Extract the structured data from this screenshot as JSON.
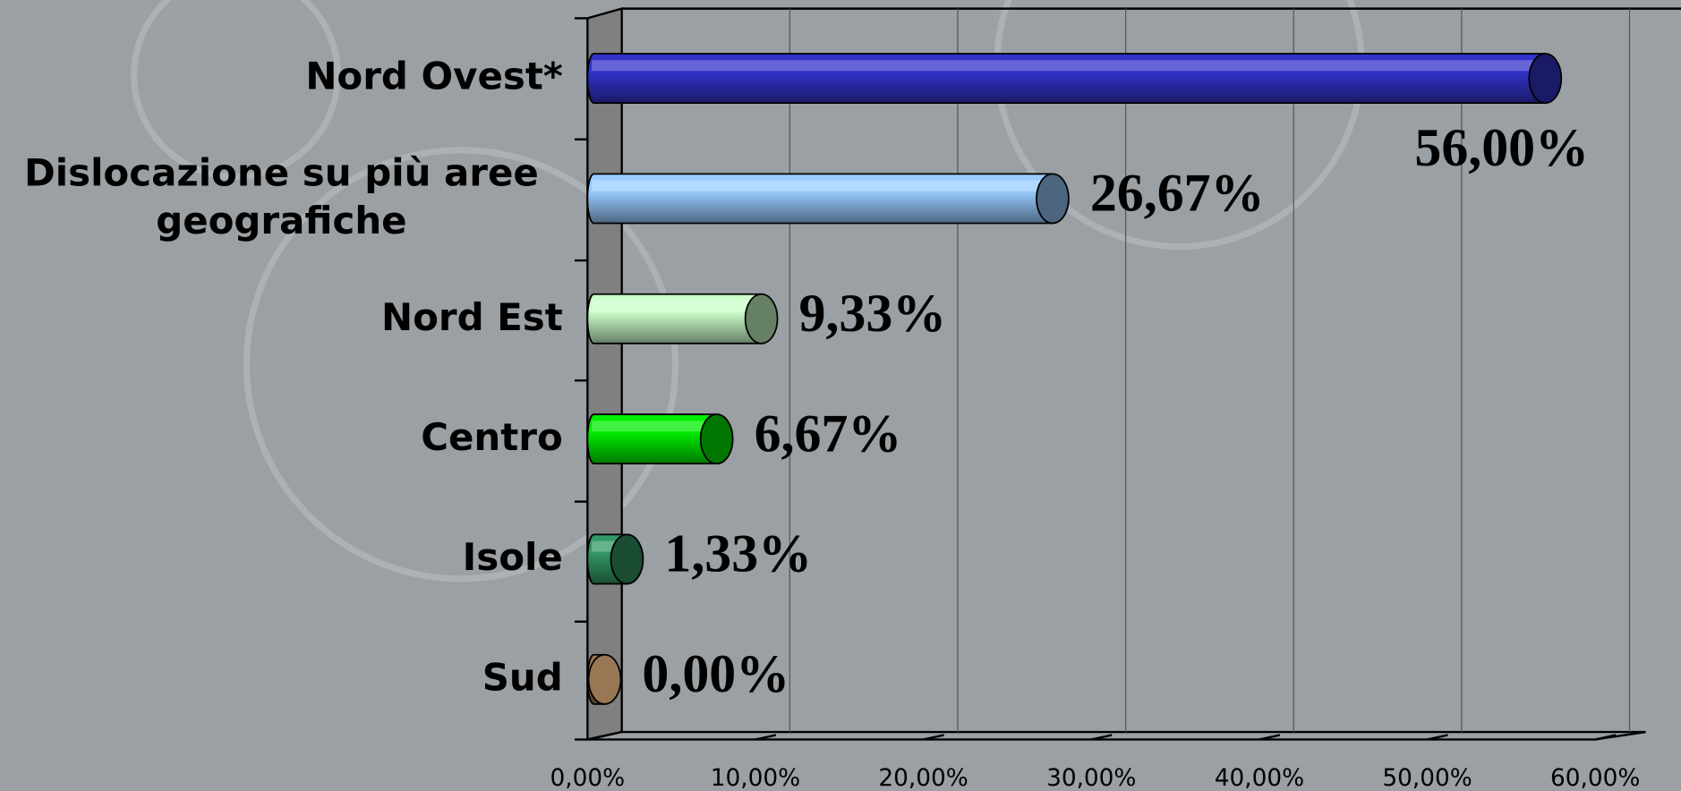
{
  "chart_data": {
    "type": "bar3d-horizontal",
    "categories": [
      "Nord Ovest*",
      "Dislocazione su più aree geografiche",
      "Nord Est",
      "Centro",
      "Isole",
      "Sud"
    ],
    "values": [
      56,
      26.67,
      9.33,
      6.67,
      1.33,
      0
    ],
    "value_labels": [
      "56,00%",
      "26,67%",
      "9,33%",
      "6,67%",
      "1,33%",
      "0,00%"
    ],
    "colors": [
      "#3333cc",
      "#99ccff",
      "#ccffcc",
      "#00ee00",
      "#339966",
      "#997755"
    ],
    "xlim": [
      0,
      60
    ],
    "xticks": [
      {
        "value": 0,
        "label": "0,00%"
      },
      {
        "value": 10,
        "label": "10,00%"
      },
      {
        "value": 20,
        "label": "20,00%"
      },
      {
        "value": 30,
        "label": "30,00%"
      },
      {
        "value": 40,
        "label": "40,00%"
      },
      {
        "value": 50,
        "label": "50,00%"
      },
      {
        "value": 60,
        "label": "60,00%"
      }
    ],
    "grid": true
  }
}
